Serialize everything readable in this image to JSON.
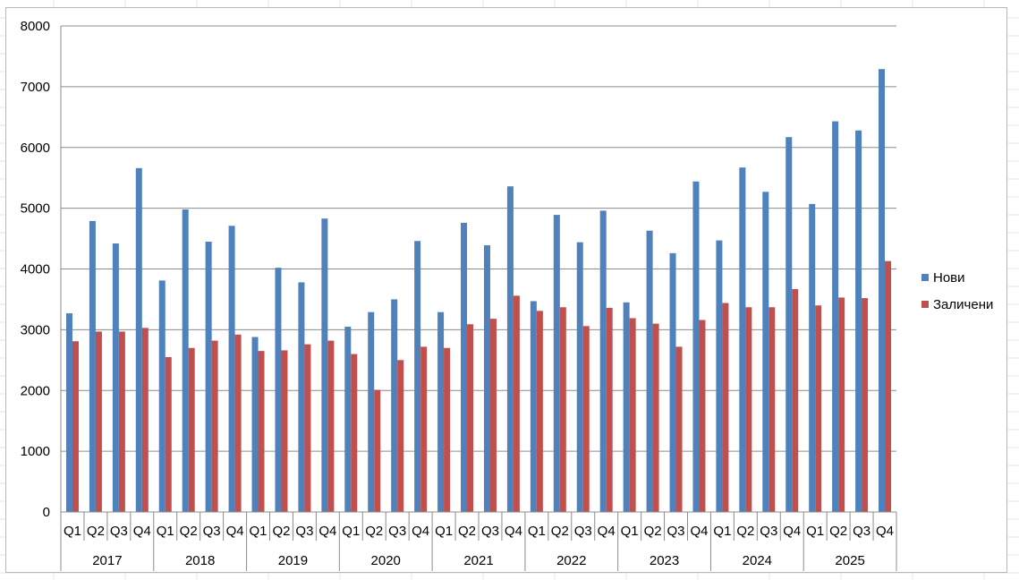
{
  "chart_data": {
    "type": "bar",
    "title": "",
    "xlabel": "",
    "ylabel": "",
    "ylim": [
      0,
      8000
    ],
    "yticks": [
      0,
      1000,
      2000,
      3000,
      4000,
      5000,
      6000,
      7000,
      8000
    ],
    "grid": true,
    "legend_position": "right",
    "groups": [
      "2017",
      "2018",
      "2019",
      "2020",
      "2021",
      "2022",
      "2023",
      "2024",
      "2025"
    ],
    "quarters": [
      "Q1",
      "Q2",
      "Q3",
      "Q4"
    ],
    "series": [
      {
        "name": "Нови",
        "color": "#4f81bd",
        "values": [
          3270,
          4790,
          4420,
          5660,
          3810,
          4980,
          4450,
          4710,
          2880,
          4020,
          3780,
          4830,
          3050,
          3290,
          3500,
          4460,
          3290,
          4760,
          4390,
          5360,
          3470,
          4890,
          4440,
          4960,
          3450,
          4630,
          4260,
          5440,
          4470,
          5670,
          5270,
          6170,
          5070,
          6430,
          6280,
          7290
        ]
      },
      {
        "name": "Заличени",
        "color": "#c0504d",
        "values": [
          2810,
          2970,
          2970,
          3030,
          2550,
          2700,
          2820,
          2920,
          2650,
          2660,
          2760,
          2820,
          2600,
          2010,
          2500,
          2720,
          2700,
          3090,
          3180,
          3560,
          3310,
          3370,
          3060,
          3360,
          3190,
          3100,
          2720,
          3160,
          3440,
          3370,
          3370,
          3670,
          3400,
          3530,
          3520,
          4130
        ]
      }
    ]
  }
}
